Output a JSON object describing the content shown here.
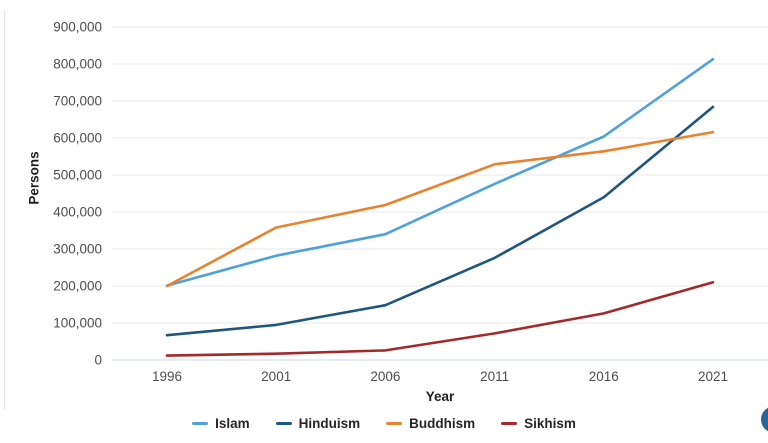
{
  "chart_data": {
    "type": "line",
    "title": "",
    "xlabel": "Year",
    "ylabel": "Persons",
    "x": [
      1996,
      2001,
      2006,
      2011,
      2016,
      2021
    ],
    "series": [
      {
        "name": "Islam",
        "color": "#4FA2D9",
        "values": [
          201000,
          282000,
          340000,
          476000,
          604000,
          813000
        ]
      },
      {
        "name": "Hinduism",
        "color": "#1F567D",
        "values": [
          67000,
          95000,
          148000,
          276000,
          440000,
          684000
        ]
      },
      {
        "name": "Buddhism",
        "color": "#E8832D",
        "values": [
          200000,
          358000,
          419000,
          529000,
          564000,
          616000
        ]
      },
      {
        "name": "Sikhism",
        "color": "#A22A2A",
        "values": [
          12000,
          17000,
          26000,
          72000,
          126000,
          210000
        ]
      }
    ],
    "ylim": [
      0,
      900000
    ],
    "ytick_step": 100000,
    "ytick_labels": [
      "0",
      "100,000",
      "200,000",
      "300,000",
      "400,000",
      "500,000",
      "600,000",
      "700,000",
      "800,000",
      "900,000"
    ],
    "grid": true,
    "legend_position": "bottom",
    "colors": {
      "gridline": "#e9e9e9",
      "zero_line": "#ccd7e3",
      "tick_text": "#4d4d4d",
      "axis_title_text": "#1f1f1f",
      "legend_text": "#262626"
    }
  },
  "ui": {
    "fab_color": "#2D6396"
  }
}
